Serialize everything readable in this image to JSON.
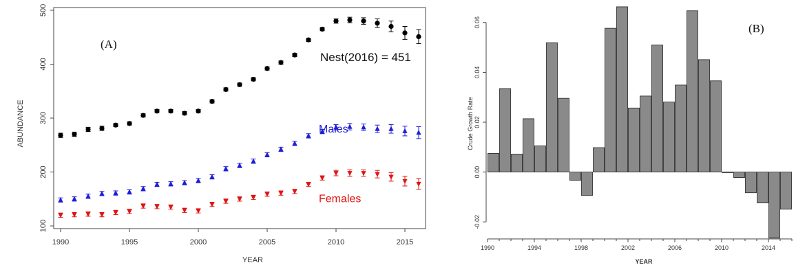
{
  "chart_data": [
    {
      "type": "scatter",
      "panel_label": "(A)",
      "xlabel": "YEAR",
      "ylabel": "ABUNDANCE",
      "xlim": [
        1989.5,
        2016.5
      ],
      "ylim": [
        95,
        505
      ],
      "xticks": [
        1990,
        1995,
        2000,
        2005,
        2010,
        2015
      ],
      "yticks": [
        100,
        200,
        300,
        400,
        500
      ],
      "annotation": "Nest(2016) = 451",
      "grid": false,
      "x": [
        1990,
        1991,
        1992,
        1993,
        1994,
        1995,
        1996,
        1997,
        1998,
        1999,
        2000,
        2001,
        2002,
        2003,
        2004,
        2005,
        2006,
        2007,
        2008,
        2009,
        2010,
        2011,
        2012,
        2013,
        2014,
        2015,
        2016
      ],
      "series": [
        {
          "name": "",
          "marker": "circle",
          "color": "#000000",
          "values": [
            268,
            270,
            279,
            281,
            287,
            290,
            305,
            313,
            313,
            309,
            313,
            331,
            353,
            362,
            372,
            392,
            403,
            417,
            445,
            465,
            480,
            482,
            480,
            476,
            470,
            458,
            451
          ],
          "err": [
            4,
            4,
            4,
            4,
            3,
            3,
            3,
            3,
            3,
            3,
            3,
            3,
            3,
            3,
            3,
            3,
            3,
            3,
            3,
            3,
            4,
            5,
            6,
            8,
            10,
            12,
            13
          ]
        },
        {
          "name": "Males",
          "marker": "triangle-up",
          "color": "#1f1fd6",
          "values": [
            148,
            150,
            155,
            160,
            161,
            163,
            169,
            177,
            178,
            180,
            184,
            191,
            206,
            212,
            220,
            232,
            242,
            253,
            267,
            275,
            283,
            284,
            283,
            280,
            280,
            276,
            273
          ],
          "err": [
            4,
            4,
            4,
            4,
            4,
            4,
            4,
            4,
            4,
            4,
            4,
            4,
            4,
            4,
            4,
            4,
            4,
            4,
            4,
            4,
            5,
            6,
            6,
            7,
            8,
            9,
            11
          ]
        },
        {
          "name": "Females",
          "marker": "triangle-down",
          "color": "#e01515",
          "values": [
            120,
            121,
            122,
            121,
            125,
            127,
            137,
            136,
            135,
            129,
            128,
            140,
            146,
            150,
            153,
            159,
            161,
            164,
            177,
            189,
            198,
            198,
            198,
            196,
            191,
            183,
            178
          ],
          "err": [
            4,
            4,
            4,
            4,
            4,
            4,
            4,
            4,
            4,
            4,
            4,
            4,
            4,
            4,
            4,
            4,
            4,
            4,
            4,
            4,
            5,
            6,
            6,
            7,
            8,
            9,
            10
          ]
        }
      ]
    },
    {
      "type": "bar",
      "panel_label": "(B)",
      "xlabel": "YEAR",
      "ylabel": "Crude Growth Rate",
      "xlim": [
        1990,
        2016
      ],
      "ylim": [
        -0.026,
        0.066
      ],
      "xticks": [
        1990,
        1994,
        1998,
        2002,
        2006,
        2010,
        2014
      ],
      "yticks": [
        "-0.02",
        "0.00",
        "0.02",
        "0.04",
        "0.06"
      ],
      "ytick_values": [
        -0.02,
        0,
        0.02,
        0.04,
        0.06
      ],
      "grid": false,
      "bar_color": "#8a8a8a",
      "categories": [
        1991,
        1992,
        1993,
        1994,
        1995,
        1996,
        1997,
        1998,
        1999,
        2000,
        2001,
        2002,
        2003,
        2004,
        2005,
        2006,
        2007,
        2008,
        2009,
        2010,
        2011,
        2012,
        2013,
        2014,
        2015,
        2016
      ],
      "values": [
        0.0075,
        0.0335,
        0.0072,
        0.0214,
        0.0105,
        0.0519,
        0.0296,
        -0.0033,
        -0.0094,
        0.0098,
        0.0577,
        0.0663,
        0.0257,
        0.0305,
        0.051,
        0.0281,
        0.0349,
        0.0647,
        0.0451,
        0.0366,
        0.0,
        -0.0022,
        -0.0083,
        -0.0124,
        -0.0265,
        -0.0149
      ]
    }
  ]
}
